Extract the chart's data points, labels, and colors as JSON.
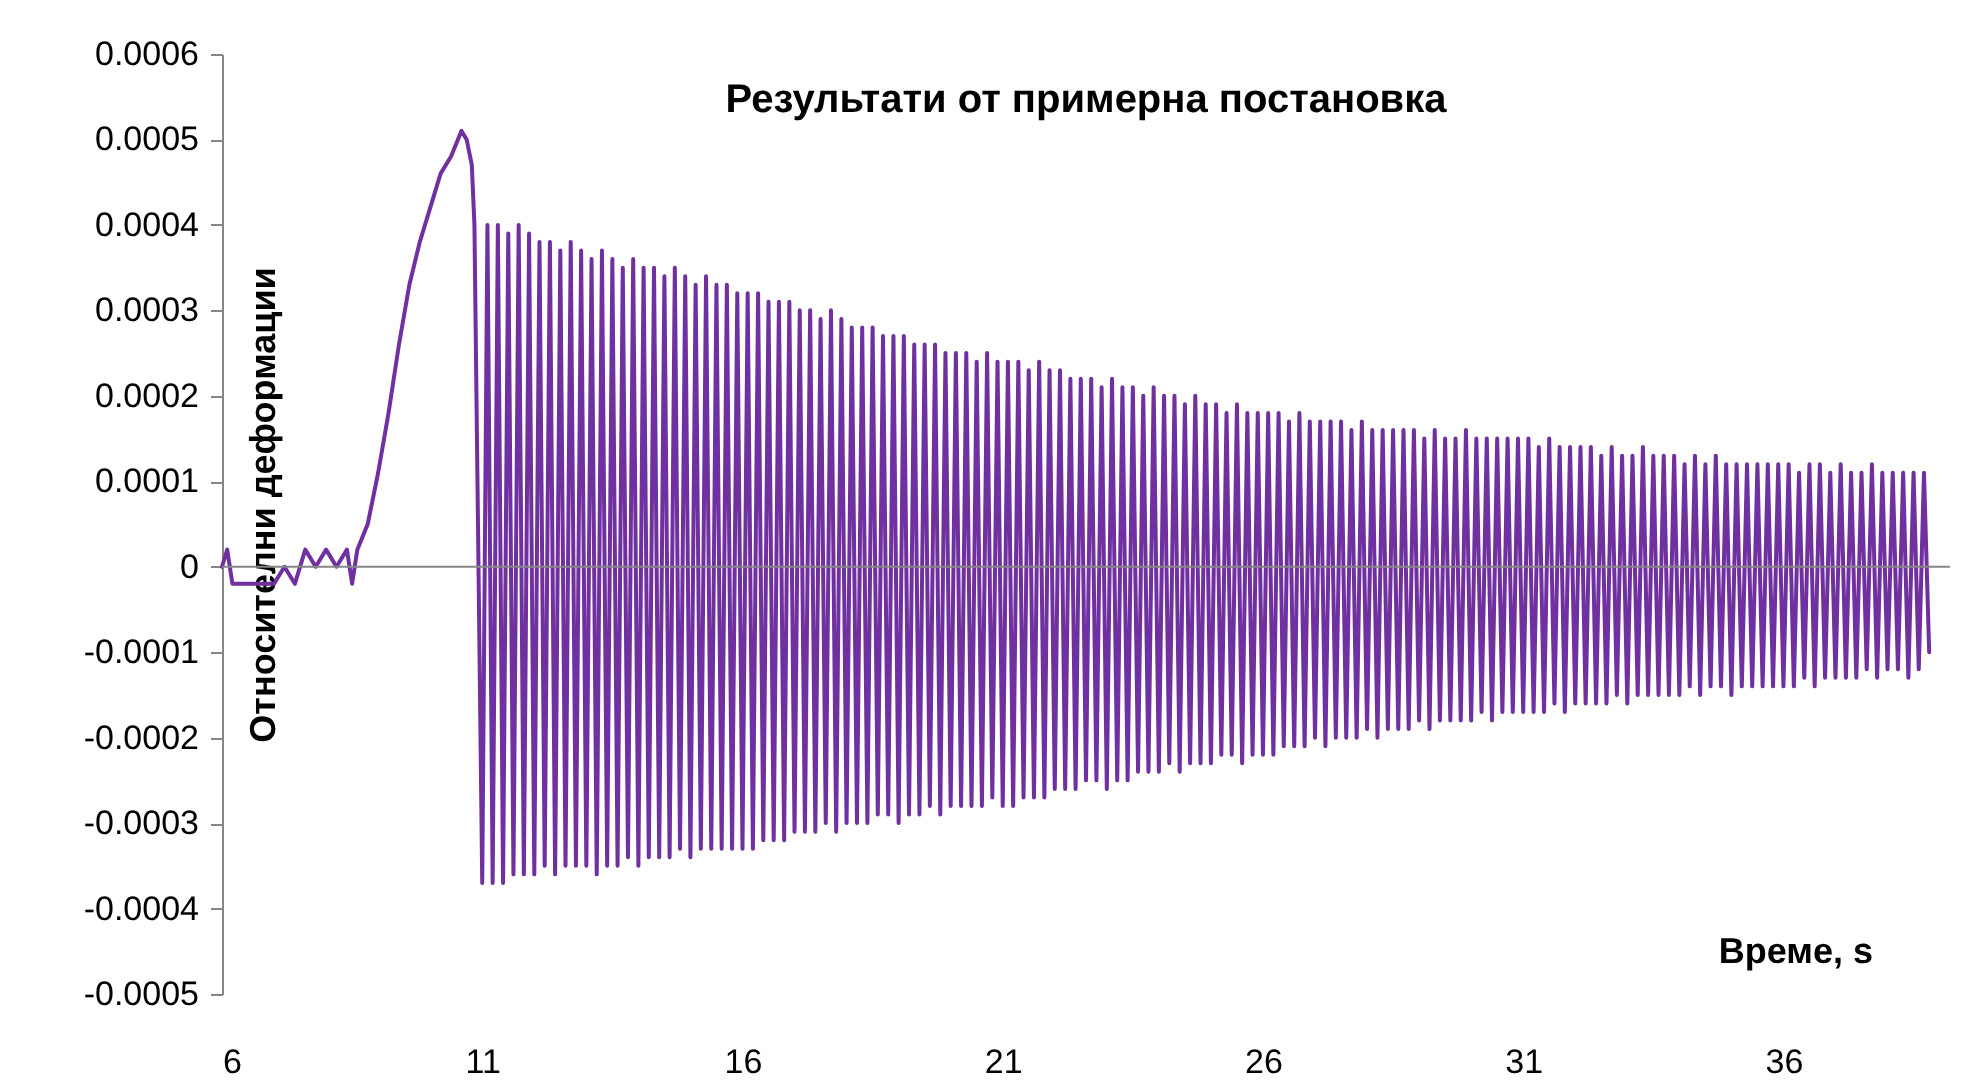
{
  "chart_data": {
    "type": "line",
    "title": "Результати от примерна постановка",
    "xlabel": "Време, s",
    "ylabel": "Относителни деформации",
    "xlim": [
      6,
      39.2
    ],
    "xticks": [
      6,
      11,
      16,
      21,
      26,
      31,
      36
    ],
    "ylim": [
      -0.0005,
      0.0006
    ],
    "yticks": [
      -0.0005,
      -0.0004,
      -0.0003,
      -0.0002,
      -0.0001,
      0,
      0.0001,
      0.0002,
      0.0003,
      0.0004,
      0.0005,
      0.0006
    ],
    "grid": false,
    "marker": "none",
    "line_style": "solid",
    "ref_lines": [
      {
        "axis": "y",
        "value": 0,
        "color": "#868686"
      }
    ],
    "series": [
      {
        "color": "#7030a0",
        "x": [
          6,
          6.1,
          6.2,
          6.4,
          6.6,
          6.8,
          7,
          7.2,
          7.4,
          7.6,
          7.8,
          8,
          8.2,
          8.4,
          8.5,
          8.6,
          8.8,
          9,
          9.2,
          9.4,
          9.6,
          9.8,
          10,
          10.2,
          10.4,
          10.6,
          10.7,
          10.8,
          10.85,
          11,
          11.1,
          11.2,
          11.3,
          11.4,
          11.5,
          11.6,
          11.7,
          11.8,
          11.9,
          12,
          12.1,
          12.2,
          12.3,
          12.4,
          12.5,
          12.6,
          12.7,
          12.8,
          12.9,
          13,
          13.1,
          13.2,
          13.3,
          13.4,
          13.5,
          13.6,
          13.7,
          13.8,
          13.9,
          14,
          14.1,
          14.2,
          14.3,
          14.4,
          14.5,
          14.6,
          14.7,
          14.8,
          14.9,
          15,
          15.1,
          15.2,
          15.3,
          15.4,
          15.5,
          15.6,
          15.7,
          15.8,
          15.9,
          16,
          16.1,
          16.2,
          16.3,
          16.4,
          16.5,
          16.6,
          16.7,
          16.8,
          16.9,
          17,
          17.1,
          17.2,
          17.3,
          17.4,
          17.5,
          17.6,
          17.7,
          17.8,
          17.9,
          18,
          18.1,
          18.2,
          18.3,
          18.4,
          18.5,
          18.6,
          18.7,
          18.8,
          18.9,
          19,
          19.1,
          19.2,
          19.3,
          19.4,
          19.5,
          19.6,
          19.7,
          19.8,
          19.9,
          20,
          20.1,
          20.2,
          20.3,
          20.4,
          20.5,
          20.6,
          20.7,
          20.8,
          20.9,
          21,
          21.1,
          21.2,
          21.3,
          21.4,
          21.5,
          21.6,
          21.7,
          21.8,
          21.9,
          22,
          22.1,
          22.2,
          22.3,
          22.4,
          22.5,
          22.6,
          22.7,
          22.8,
          22.9,
          23,
          23.1,
          23.2,
          23.3,
          23.4,
          23.5,
          23.6,
          23.7,
          23.8,
          23.9,
          24,
          24.1,
          24.2,
          24.3,
          24.4,
          24.5,
          24.6,
          24.7,
          24.8,
          24.9,
          25,
          25.1,
          25.2,
          25.3,
          25.4,
          25.5,
          25.6,
          25.7,
          25.8,
          25.9,
          26,
          26.1,
          26.2,
          26.3,
          26.4,
          26.5,
          26.6,
          26.7,
          26.8,
          26.9,
          27,
          27.1,
          27.2,
          27.3,
          27.4,
          27.5,
          27.6,
          27.7,
          27.8,
          27.9,
          28,
          28.1,
          28.2,
          28.3,
          28.4,
          28.5,
          28.6,
          28.7,
          28.8,
          28.9,
          29,
          29.1,
          29.2,
          29.3,
          29.4,
          29.5,
          29.6,
          29.7,
          29.8,
          29.9,
          30,
          30.1,
          30.2,
          30.3,
          30.4,
          30.5,
          30.6,
          30.7,
          30.8,
          30.9,
          31,
          31.1,
          31.2,
          31.3,
          31.4,
          31.5,
          31.6,
          31.7,
          31.8,
          31.9,
          32,
          32.1,
          32.2,
          32.3,
          32.4,
          32.5,
          32.6,
          32.7,
          32.8,
          32.9,
          33,
          33.1,
          33.2,
          33.3,
          33.4,
          33.5,
          33.6,
          33.7,
          33.8,
          33.9,
          34,
          34.1,
          34.2,
          34.3,
          34.4,
          34.5,
          34.6,
          34.7,
          34.8,
          34.9,
          35,
          35.1,
          35.2,
          35.3,
          35.4,
          35.5,
          35.6,
          35.7,
          35.8,
          35.9,
          36,
          36.1,
          36.2,
          36.3,
          36.4,
          36.5,
          36.6,
          36.7,
          36.8,
          36.9,
          37,
          37.1,
          37.2,
          37.3,
          37.4,
          37.5,
          37.6,
          37.7,
          37.8,
          37.9,
          38,
          38.1,
          38.2,
          38.3,
          38.4,
          38.5,
          38.6,
          38.7,
          38.8
        ],
        "values": [
          0,
          2e-05,
          -2e-05,
          -2e-05,
          -2e-05,
          -2e-05,
          -2e-05,
          0,
          -2e-05,
          2e-05,
          0,
          2e-05,
          0,
          2e-05,
          -2e-05,
          2e-05,
          5e-05,
          0.00011,
          0.00018,
          0.00026,
          0.00033,
          0.00038,
          0.00042,
          0.00046,
          0.00048,
          0.00051,
          0.0005,
          0.00047,
          0.0004,
          -0.00037,
          0.0004,
          -0.00037,
          0.0004,
          -0.00037,
          0.00039,
          -0.00036,
          0.0004,
          -0.00036,
          0.00039,
          -0.00036,
          0.00038,
          -0.00035,
          0.00038,
          -0.00036,
          0.00037,
          -0.00035,
          0.00038,
          -0.00035,
          0.00037,
          -0.00035,
          0.00036,
          -0.00036,
          0.00037,
          -0.00035,
          0.00036,
          -0.00035,
          0.00035,
          -0.00034,
          0.00036,
          -0.00035,
          0.00035,
          -0.00034,
          0.00035,
          -0.00034,
          0.00034,
          -0.00034,
          0.00035,
          -0.00033,
          0.00034,
          -0.00034,
          0.00033,
          -0.00033,
          0.00034,
          -0.00033,
          0.00033,
          -0.00033,
          0.00033,
          -0.00033,
          0.00032,
          -0.00033,
          0.00032,
          -0.00033,
          0.00032,
          -0.00032,
          0.00031,
          -0.00032,
          0.00031,
          -0.00032,
          0.00031,
          -0.00031,
          0.0003,
          -0.00031,
          0.0003,
          -0.00031,
          0.00029,
          -0.0003,
          0.0003,
          -0.00031,
          0.00029,
          -0.0003,
          0.00028,
          -0.0003,
          0.00028,
          -0.0003,
          0.00028,
          -0.00029,
          0.00027,
          -0.00029,
          0.00027,
          -0.0003,
          0.00027,
          -0.00029,
          0.00026,
          -0.00029,
          0.00026,
          -0.00028,
          0.00026,
          -0.00029,
          0.00025,
          -0.00028,
          0.00025,
          -0.00028,
          0.00025,
          -0.00028,
          0.00024,
          -0.00028,
          0.00025,
          -0.00027,
          0.00024,
          -0.00028,
          0.00024,
          -0.00028,
          0.00024,
          -0.00027,
          0.00023,
          -0.00027,
          0.00024,
          -0.00027,
          0.00023,
          -0.00026,
          0.00023,
          -0.00026,
          0.00022,
          -0.00026,
          0.00022,
          -0.00025,
          0.00022,
          -0.00025,
          0.00021,
          -0.00026,
          0.00022,
          -0.00025,
          0.00021,
          -0.00025,
          0.00021,
          -0.00024,
          0.0002,
          -0.00024,
          0.00021,
          -0.00024,
          0.0002,
          -0.00023,
          0.0002,
          -0.00024,
          0.00019,
          -0.00023,
          0.0002,
          -0.00023,
          0.00019,
          -0.00023,
          0.00019,
          -0.00022,
          0.00018,
          -0.00022,
          0.00019,
          -0.00023,
          0.00018,
          -0.00022,
          0.00018,
          -0.00022,
          0.00018,
          -0.00022,
          0.00018,
          -0.00021,
          0.00017,
          -0.00021,
          0.00018,
          -0.00021,
          0.00017,
          -0.0002,
          0.00017,
          -0.00021,
          0.00017,
          -0.0002,
          0.00017,
          -0.0002,
          0.00016,
          -0.0002,
          0.00017,
          -0.00019,
          0.00016,
          -0.0002,
          0.00016,
          -0.00019,
          0.00016,
          -0.00019,
          0.00016,
          -0.00019,
          0.00016,
          -0.00018,
          0.00015,
          -0.00019,
          0.00016,
          -0.00018,
          0.00015,
          -0.00018,
          0.00015,
          -0.00018,
          0.00016,
          -0.00018,
          0.00015,
          -0.00017,
          0.00015,
          -0.00018,
          0.00015,
          -0.00017,
          0.00015,
          -0.00017,
          0.00015,
          -0.00017,
          0.00015,
          -0.00017,
          0.00014,
          -0.00017,
          0.00015,
          -0.00016,
          0.00014,
          -0.00017,
          0.00014,
          -0.00016,
          0.00014,
          -0.00016,
          0.00014,
          -0.00016,
          0.00013,
          -0.00016,
          0.00014,
          -0.00015,
          0.00013,
          -0.00016,
          0.00013,
          -0.00015,
          0.00014,
          -0.00015,
          0.00013,
          -0.00015,
          0.00013,
          -0.00015,
          0.00013,
          -0.00015,
          0.00012,
          -0.00014,
          0.00013,
          -0.00015,
          0.00012,
          -0.00014,
          0.00013,
          -0.00014,
          0.00012,
          -0.00015,
          0.00012,
          -0.00014,
          0.00012,
          -0.00014,
          0.00012,
          -0.00014,
          0.00012,
          -0.00014,
          0.00012,
          -0.00014,
          0.00012,
          -0.00014,
          0.00011,
          -0.00013,
          0.00012,
          -0.00014,
          0.00012,
          -0.00013,
          0.00011,
          -0.00013,
          0.00012,
          -0.00013,
          0.00011,
          -0.00013,
          0.00011,
          -0.00012,
          0.00012,
          -0.00013,
          0.00011,
          -0.00012,
          0.00011,
          -0.00012,
          0.00011,
          -0.00013,
          0.00011,
          -0.00012,
          0.00011,
          -0.0001
        ]
      }
    ]
  }
}
